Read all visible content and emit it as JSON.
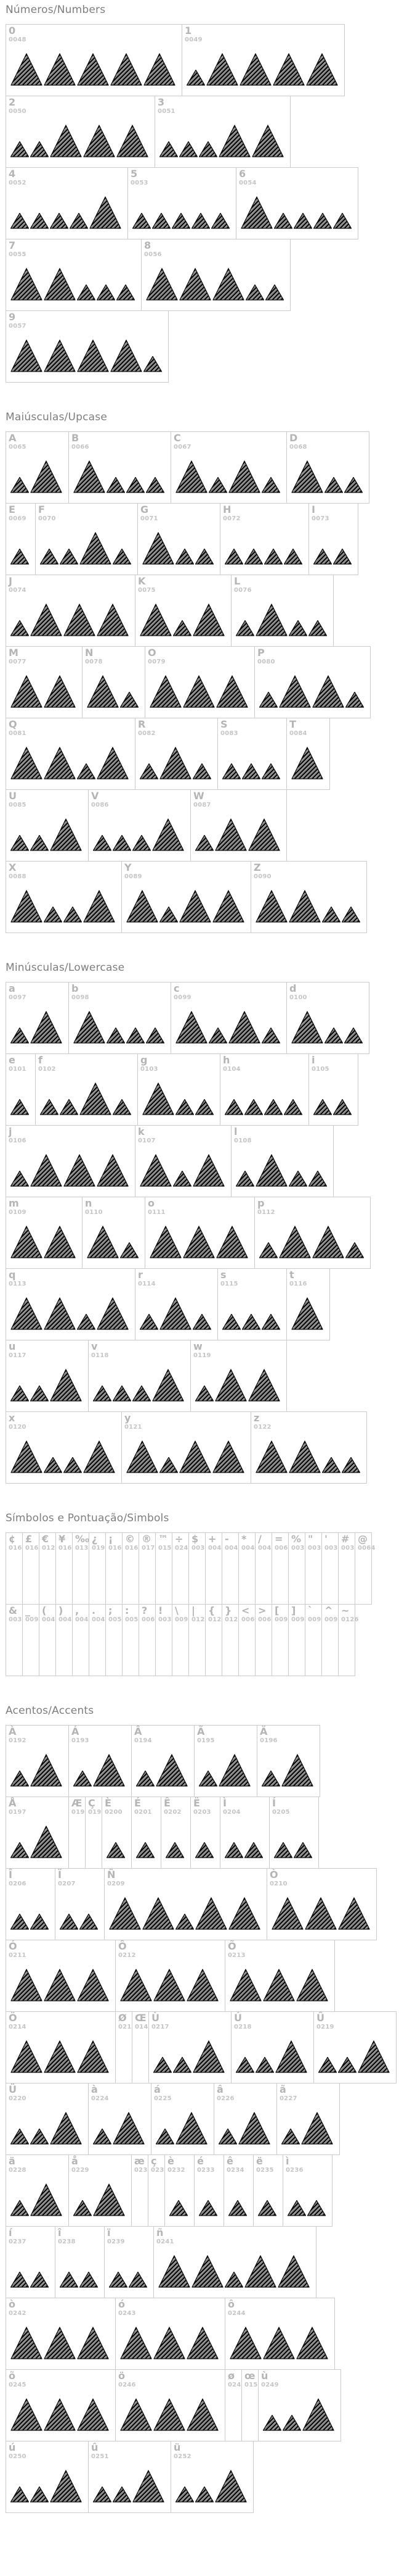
{
  "page": {
    "background": "#ffffff",
    "border_color": "#cccccc",
    "heading_color": "#7e7e7e",
    "label_color": "#b5b5b5",
    "code_color": "#c6c6c6",
    "glyph_color": "#101010",
    "glyph_style": "sketched-hatched-triangles"
  },
  "sections": [
    {
      "id": "numbers",
      "title": "Números/Numbers",
      "rows": [
        [
          {
            "ch": "0",
            "code": "0048",
            "pat": "bbbbb"
          },
          {
            "ch": "1",
            "code": "0049",
            "pat": "sbbbb"
          }
        ],
        [
          {
            "ch": "2",
            "code": "0050",
            "pat": "ssbbb"
          },
          {
            "ch": "3",
            "code": "0051",
            "pat": "sssbb"
          }
        ],
        [
          {
            "ch": "4",
            "code": "0052",
            "pat": "ssssb"
          },
          {
            "ch": "5",
            "code": "0053",
            "pat": "sssss"
          },
          {
            "ch": "6",
            "code": "0054",
            "pat": "bssss"
          }
        ],
        [
          {
            "ch": "7",
            "code": "0055",
            "pat": "bbsss"
          },
          {
            "ch": "8",
            "code": "0056",
            "pat": "bbbss"
          }
        ],
        [
          {
            "ch": "9",
            "code": "0057",
            "pat": "bbbbs"
          }
        ]
      ]
    },
    {
      "id": "uppercase",
      "title": "Maiúsculas/Upcase",
      "rows": [
        [
          {
            "ch": "A",
            "code": "0065",
            "pat": "sb"
          },
          {
            "ch": "B",
            "code": "0066",
            "pat": "bsss"
          },
          {
            "ch": "C",
            "code": "0067",
            "pat": "bsbs"
          },
          {
            "ch": "D",
            "code": "0068",
            "pat": "bss"
          }
        ],
        [
          {
            "ch": "E",
            "code": "0069",
            "pat": "s"
          },
          {
            "ch": "F",
            "code": "0070",
            "pat": "ssbs"
          },
          {
            "ch": "G",
            "code": "0071",
            "pat": "bss"
          },
          {
            "ch": "H",
            "code": "0072",
            "pat": "ssss"
          },
          {
            "ch": "I",
            "code": "0073",
            "pat": "ss"
          }
        ],
        [
          {
            "ch": "J",
            "code": "0074",
            "pat": "sbbb"
          },
          {
            "ch": "K",
            "code": "0075",
            "pat": "bsb"
          },
          {
            "ch": "L",
            "code": "0076",
            "pat": "sbss"
          }
        ],
        [
          {
            "ch": "M",
            "code": "0077",
            "pat": "bb"
          },
          {
            "ch": "N",
            "code": "0078",
            "pat": "bs"
          },
          {
            "ch": "O",
            "code": "0079",
            "pat": "bbb"
          },
          {
            "ch": "P",
            "code": "0080",
            "pat": "sbbs"
          }
        ],
        [
          {
            "ch": "Q",
            "code": "0081",
            "pat": "bbsb"
          },
          {
            "ch": "R",
            "code": "0082",
            "pat": "sbs"
          },
          {
            "ch": "S",
            "code": "0083",
            "pat": "sss"
          },
          {
            "ch": "T",
            "code": "0084",
            "pat": "b"
          }
        ],
        [
          {
            "ch": "U",
            "code": "0085",
            "pat": "ssb"
          },
          {
            "ch": "V",
            "code": "0086",
            "pat": "sssb"
          },
          {
            "ch": "W",
            "code": "0087",
            "pat": "sbb"
          }
        ],
        [
          {
            "ch": "X",
            "code": "0088",
            "pat": "bssb"
          },
          {
            "ch": "Y",
            "code": "0089",
            "pat": "bsbb"
          },
          {
            "ch": "Z",
            "code": "0090",
            "pat": "bbss"
          }
        ]
      ]
    },
    {
      "id": "lowercase",
      "title": "Minúsculas/Lowercase",
      "rows": [
        [
          {
            "ch": "a",
            "code": "0097",
            "pat": "sb"
          },
          {
            "ch": "b",
            "code": "0098",
            "pat": "bsss"
          },
          {
            "ch": "c",
            "code": "0099",
            "pat": "bsbs"
          },
          {
            "ch": "d",
            "code": "0100",
            "pat": "bss"
          }
        ],
        [
          {
            "ch": "e",
            "code": "0101",
            "pat": "s"
          },
          {
            "ch": "f",
            "code": "0102",
            "pat": "ssbs"
          },
          {
            "ch": "g",
            "code": "0103",
            "pat": "bss"
          },
          {
            "ch": "h",
            "code": "0104",
            "pat": "ssss"
          },
          {
            "ch": "i",
            "code": "0105",
            "pat": "ss"
          }
        ],
        [
          {
            "ch": "j",
            "code": "0106",
            "pat": "sbbb"
          },
          {
            "ch": "k",
            "code": "0107",
            "pat": "bsb"
          },
          {
            "ch": "l",
            "code": "0108",
            "pat": "sbss"
          }
        ],
        [
          {
            "ch": "m",
            "code": "0109",
            "pat": "bb"
          },
          {
            "ch": "n",
            "code": "0110",
            "pat": "bs"
          },
          {
            "ch": "o",
            "code": "0111",
            "pat": "bbb"
          },
          {
            "ch": "p",
            "code": "0112",
            "pat": "sbbs"
          }
        ],
        [
          {
            "ch": "q",
            "code": "0113",
            "pat": "bbsb"
          },
          {
            "ch": "r",
            "code": "0114",
            "pat": "sbs"
          },
          {
            "ch": "s",
            "code": "0115",
            "pat": "sss"
          },
          {
            "ch": "t",
            "code": "0116",
            "pat": "b"
          }
        ],
        [
          {
            "ch": "u",
            "code": "0117",
            "pat": "ssb"
          },
          {
            "ch": "v",
            "code": "0118",
            "pat": "sssb"
          },
          {
            "ch": "w",
            "code": "0119",
            "pat": "sbb"
          }
        ],
        [
          {
            "ch": "x",
            "code": "0120",
            "pat": "bssb"
          },
          {
            "ch": "y",
            "code": "0121",
            "pat": "bsbb"
          },
          {
            "ch": "z",
            "code": "0122",
            "pat": "bbss"
          }
        ]
      ]
    },
    {
      "id": "symbols",
      "title": "Símbolos e Pontuação/Simbols",
      "rows": [
        [
          {
            "ch": "¢",
            "code": "0162",
            "pat": ""
          },
          {
            "ch": "£",
            "code": "0163",
            "pat": ""
          },
          {
            "ch": "€",
            "code": "0128",
            "pat": ""
          },
          {
            "ch": "¥",
            "code": "0165",
            "pat": ""
          },
          {
            "ch": "‰",
            "code": "0137",
            "pat": ""
          },
          {
            "ch": "¿",
            "code": "0191",
            "pat": ""
          },
          {
            "ch": "¡",
            "code": "0161",
            "pat": ""
          },
          {
            "ch": "©",
            "code": "0169",
            "pat": ""
          },
          {
            "ch": "®",
            "code": "0174",
            "pat": ""
          },
          {
            "ch": "™",
            "code": "0153",
            "pat": ""
          },
          {
            "ch": "÷",
            "code": "0247",
            "pat": ""
          },
          {
            "ch": "$",
            "code": "0036",
            "pat": ""
          },
          {
            "ch": "+",
            "code": "0043",
            "pat": ""
          },
          {
            "ch": "-",
            "code": "0045",
            "pat": ""
          },
          {
            "ch": "*",
            "code": "0042",
            "pat": ""
          },
          {
            "ch": "/",
            "code": "0047",
            "pat": ""
          },
          {
            "ch": "=",
            "code": "0061",
            "pat": ""
          },
          {
            "ch": "%",
            "code": "0037",
            "pat": ""
          },
          {
            "ch": "\"",
            "code": "0034",
            "pat": ""
          },
          {
            "ch": "'",
            "code": "0039",
            "pat": ""
          },
          {
            "ch": "#",
            "code": "0035",
            "pat": ""
          },
          {
            "ch": "@",
            "code": "0064",
            "pat": ""
          }
        ],
        [
          {
            "ch": "&",
            "code": "0038",
            "pat": ""
          },
          {
            "ch": "_",
            "code": "0095",
            "pat": ""
          },
          {
            "ch": "(",
            "code": "0040",
            "pat": ""
          },
          {
            "ch": ")",
            "code": "0041",
            "pat": ""
          },
          {
            "ch": ",",
            "code": "0044",
            "pat": ""
          },
          {
            "ch": ".",
            "code": "0046",
            "pat": ""
          },
          {
            "ch": ";",
            "code": "0059",
            "pat": ""
          },
          {
            "ch": ":",
            "code": "0058",
            "pat": ""
          },
          {
            "ch": "?",
            "code": "0063",
            "pat": ""
          },
          {
            "ch": "!",
            "code": "0033",
            "pat": ""
          },
          {
            "ch": "\\",
            "code": "0092",
            "pat": ""
          },
          {
            "ch": "|",
            "code": "0124",
            "pat": ""
          },
          {
            "ch": "{",
            "code": "0123",
            "pat": ""
          },
          {
            "ch": "}",
            "code": "0125",
            "pat": ""
          },
          {
            "ch": "<",
            "code": "0060",
            "pat": ""
          },
          {
            "ch": ">",
            "code": "0062",
            "pat": ""
          },
          {
            "ch": "[",
            "code": "0091",
            "pat": ""
          },
          {
            "ch": "]",
            "code": "0093",
            "pat": ""
          },
          {
            "ch": "`",
            "code": "0096",
            "pat": ""
          },
          {
            "ch": "^",
            "code": "0094",
            "pat": ""
          },
          {
            "ch": "~",
            "code": "0126",
            "pat": ""
          }
        ]
      ]
    },
    {
      "id": "accents",
      "title": "Acentos/Accents",
      "rows": [
        [
          {
            "ch": "À",
            "code": "0192",
            "pat": "sb"
          },
          {
            "ch": "Á",
            "code": "0193",
            "pat": "sb"
          },
          {
            "ch": "Â",
            "code": "0194",
            "pat": "sb"
          },
          {
            "ch": "Ã",
            "code": "0195",
            "pat": "sb"
          },
          {
            "ch": "Ä",
            "code": "0196",
            "pat": "sb"
          }
        ],
        [
          {
            "ch": "Å",
            "code": "0197",
            "pat": "sb"
          },
          {
            "ch": "Æ",
            "code": "0198",
            "pat": ""
          },
          {
            "ch": "Ç",
            "code": "0199",
            "pat": ""
          },
          {
            "ch": "È",
            "code": "0200",
            "pat": "s"
          },
          {
            "ch": "É",
            "code": "0201",
            "pat": "s"
          },
          {
            "ch": "Ê",
            "code": "0202",
            "pat": "s"
          },
          {
            "ch": "Ë",
            "code": "0203",
            "pat": "s"
          },
          {
            "ch": "Ì",
            "code": "0204",
            "pat": "ss"
          },
          {
            "ch": "Í",
            "code": "0205",
            "pat": "ss"
          }
        ],
        [
          {
            "ch": "Î",
            "code": "0206",
            "pat": "ss"
          },
          {
            "ch": "Ï",
            "code": "0207",
            "pat": "ss"
          },
          {
            "ch": "Ñ",
            "code": "0209",
            "pat": "bbsbb"
          },
          {
            "ch": "Ò",
            "code": "0210",
            "pat": "bbb"
          }
        ],
        [
          {
            "ch": "Ó",
            "code": "0211",
            "pat": "bbb"
          },
          {
            "ch": "Ô",
            "code": "0212",
            "pat": "bbb"
          },
          {
            "ch": "Õ",
            "code": "0213",
            "pat": "bbb"
          }
        ],
        [
          {
            "ch": "Ö",
            "code": "0214",
            "pat": "bbb"
          },
          {
            "ch": "Ø",
            "code": "0216",
            "pat": ""
          },
          {
            "ch": "Œ",
            "code": "0140",
            "pat": ""
          },
          {
            "ch": "Ù",
            "code": "0217",
            "pat": "ssb"
          },
          {
            "ch": "Ú",
            "code": "0218",
            "pat": "ssb"
          },
          {
            "ch": "Û",
            "code": "0219",
            "pat": "ssb"
          }
        ],
        [
          {
            "ch": "Ü",
            "code": "0220",
            "pat": "ssb"
          },
          {
            "ch": "à",
            "code": "0224",
            "pat": "sb"
          },
          {
            "ch": "á",
            "code": "0225",
            "pat": "sb"
          },
          {
            "ch": "â",
            "code": "0226",
            "pat": "sb"
          },
          {
            "ch": "ã",
            "code": "0227",
            "pat": "sb"
          }
        ],
        [
          {
            "ch": "ä",
            "code": "0228",
            "pat": "sb"
          },
          {
            "ch": "å",
            "code": "0229",
            "pat": "sb"
          },
          {
            "ch": "æ",
            "code": "0230",
            "pat": ""
          },
          {
            "ch": "ç",
            "code": "0231",
            "pat": ""
          },
          {
            "ch": "è",
            "code": "0232",
            "pat": "s"
          },
          {
            "ch": "é",
            "code": "0233",
            "pat": "s"
          },
          {
            "ch": "ê",
            "code": "0234",
            "pat": "s"
          },
          {
            "ch": "ë",
            "code": "0235",
            "pat": "s"
          },
          {
            "ch": "ì",
            "code": "0236",
            "pat": "ss"
          }
        ],
        [
          {
            "ch": "í",
            "code": "0237",
            "pat": "ss"
          },
          {
            "ch": "î",
            "code": "0238",
            "pat": "ss"
          },
          {
            "ch": "ï",
            "code": "0239",
            "pat": "ss"
          },
          {
            "ch": "ñ",
            "code": "0241",
            "pat": "bbsbb"
          }
        ],
        [
          {
            "ch": "ò",
            "code": "0242",
            "pat": "bbb"
          },
          {
            "ch": "ó",
            "code": "0243",
            "pat": "bbb"
          },
          {
            "ch": "ô",
            "code": "0244",
            "pat": "bbb"
          }
        ],
        [
          {
            "ch": "õ",
            "code": "0245",
            "pat": "bbb"
          },
          {
            "ch": "ö",
            "code": "0246",
            "pat": "bbb"
          },
          {
            "ch": "ø",
            "code": "0248",
            "pat": ""
          },
          {
            "ch": "œ",
            "code": "0156",
            "pat": ""
          },
          {
            "ch": "ù",
            "code": "0249",
            "pat": "ssb"
          }
        ],
        [
          {
            "ch": "ú",
            "code": "0250",
            "pat": "ssb"
          },
          {
            "ch": "û",
            "code": "0251",
            "pat": "ssb"
          },
          {
            "ch": "ü",
            "code": "0252",
            "pat": "ssb"
          }
        ]
      ]
    }
  ]
}
